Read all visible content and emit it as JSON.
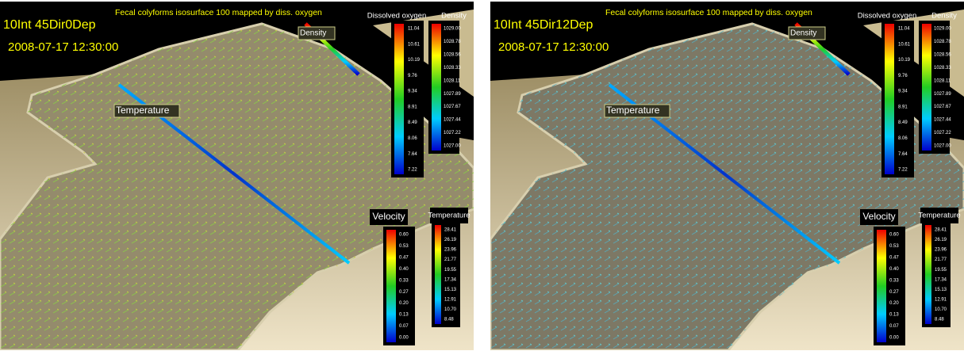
{
  "panels": [
    {
      "run": "10Int 45Dir0Dep",
      "timestamp": "2008-07-17 12:30:00",
      "caption": "Fecal colyforms isosurface 100 mapped by diss. oxygen",
      "scene_labels": [
        "Density",
        "Temperature"
      ],
      "legends": [
        {
          "label": "Dissolved oxygen",
          "ticks": [
            "11.04",
            "10.61",
            "10.19",
            "9.76",
            "9.34",
            "8.91",
            "8.49",
            "8.06",
            "7.64",
            "7.22"
          ]
        },
        {
          "label": "Density",
          "ticks": [
            "1029.00",
            "1028.78",
            "1028.56",
            "1028.33",
            "1028.11",
            "1027.89",
            "1027.67",
            "1027.44",
            "1027.22",
            "1027.00"
          ]
        },
        {
          "label": "Velocity",
          "ticks": [
            "0.60",
            "0.53",
            "0.47",
            "0.40",
            "0.33",
            "0.27",
            "0.20",
            "0.13",
            "0.07",
            "0.00"
          ]
        },
        {
          "label": "Temperature",
          "ticks": [
            "28.41",
            "26.19",
            "23.96",
            "21.77",
            "19.55",
            "17.34",
            "15.13",
            "12.91",
            "10.70",
            "8.48"
          ]
        }
      ]
    },
    {
      "run": "10Int 45Dir12Dep",
      "timestamp": "2008-07-17 12:30:00",
      "caption": "Fecal colyforms isosurface 100 mapped by diss. oxygen",
      "scene_labels": [
        "Density",
        "Temperature"
      ],
      "legends": [
        {
          "label": "Dissolved oxygen",
          "ticks": [
            "11.04",
            "10.61",
            "10.19",
            "9.76",
            "9.34",
            "8.91",
            "8.49",
            "8.06",
            "7.64",
            "7.22"
          ]
        },
        {
          "label": "Density",
          "ticks": [
            "1029.00",
            "1028.78",
            "1028.56",
            "1028.33",
            "1028.11",
            "1027.89",
            "1027.67",
            "1027.44",
            "1027.22",
            "1027.00"
          ]
        },
        {
          "label": "Velocity",
          "ticks": [
            "0.60",
            "0.53",
            "0.47",
            "0.40",
            "0.33",
            "0.27",
            "0.20",
            "0.13",
            "0.07",
            "0.00"
          ]
        },
        {
          "label": "Temperature",
          "ticks": [
            "28.41",
            "26.19",
            "23.96",
            "21.77",
            "19.55",
            "17.34",
            "15.13",
            "12.91",
            "10.70",
            "8.48"
          ]
        }
      ]
    }
  ]
}
